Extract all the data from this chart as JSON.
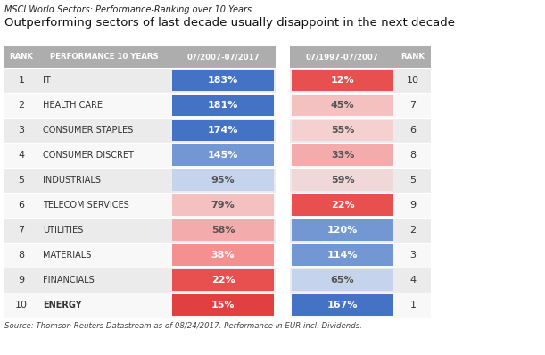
{
  "title_small": "MSCI World Sectors: Performance-Ranking over 10 Years",
  "title_large": "Outperforming sectors of last decade usually disappoint in the next decade",
  "source": "Source: Thomson Reuters Datastream as of 08/24/2017. Performance in EUR incl. Dividends.",
  "header": [
    "RANK",
    "PERFORMANCE 10 YEARS",
    "07/2007-07/2017",
    "07/1997-07/2007",
    "RANK"
  ],
  "ranks_left": [
    1,
    2,
    3,
    4,
    5,
    6,
    7,
    8,
    9,
    10
  ],
  "sectors": [
    "IT",
    "HEALTH CARE",
    "CONSUMER STAPLES",
    "CONSUMER DISCRET",
    "INDUSTRIALS",
    "TELECOM SERVICES",
    "UTILITIES",
    "MATERIALS",
    "FINANCIALS",
    "ENERGY"
  ],
  "perf_2007_2017": [
    183,
    181,
    174,
    145,
    95,
    79,
    58,
    38,
    22,
    15
  ],
  "perf_1997_2007": [
    12,
    45,
    55,
    33,
    59,
    22,
    120,
    114,
    65,
    167
  ],
  "ranks_right": [
    10,
    7,
    6,
    8,
    5,
    9,
    2,
    3,
    4,
    1
  ],
  "bold_rows": [
    9
  ],
  "col1_colors": [
    "#4472C4",
    "#4472C4",
    "#4472C4",
    "#7397D3",
    "#C5D3EC",
    "#F4C0C0",
    "#F4ABAB",
    "#F49090",
    "#E85050",
    "#E04040"
  ],
  "col2_colors": [
    "#E85050",
    "#F4C0C0",
    "#F4D0D0",
    "#F4ABAB",
    "#F0D8D8",
    "#E85050",
    "#7397D3",
    "#7397D3",
    "#C5D3EC",
    "#4472C4"
  ],
  "col1_text_colors": [
    "white",
    "white",
    "white",
    "white",
    "#555555",
    "#555555",
    "#555555",
    "white",
    "white",
    "white"
  ],
  "col2_text_colors": [
    "white",
    "#555555",
    "#555555",
    "#555555",
    "#555555",
    "white",
    "white",
    "white",
    "#555555",
    "white"
  ],
  "header_bg": "#ADADAD",
  "row_bg_odd": "#EBEBEB",
  "row_bg_even": "#F8F8F8",
  "text_color": "#333333",
  "gap_color": "#FFFFFF",
  "figw": 6.11,
  "figh": 3.98,
  "dpi": 100
}
